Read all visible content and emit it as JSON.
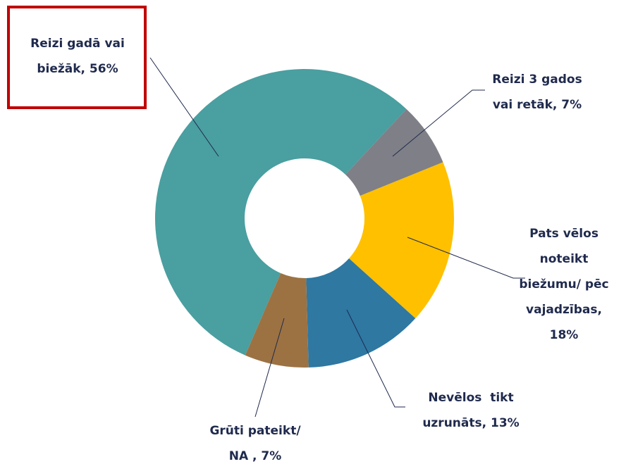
{
  "chart_data": {
    "type": "donut",
    "categories": [
      "Reizi gadā vai\nbiežāk, 56%",
      "Reizi 3 gados\nvai retāk, 7%",
      "Pats vēlos\nnoteikt\nbiežumu/ pēc\nvajadzības,\n18%",
      "Nevēlos  tikt\nuzrunāts, 13%",
      "Grūti pateikt/\nNA , 7%"
    ],
    "values": [
      56,
      7,
      18,
      13,
      7
    ],
    "colors": [
      "#4a9fa0",
      "#7f7f87",
      "#ffc000",
      "#2e78a2",
      "#9c7243"
    ]
  }
}
